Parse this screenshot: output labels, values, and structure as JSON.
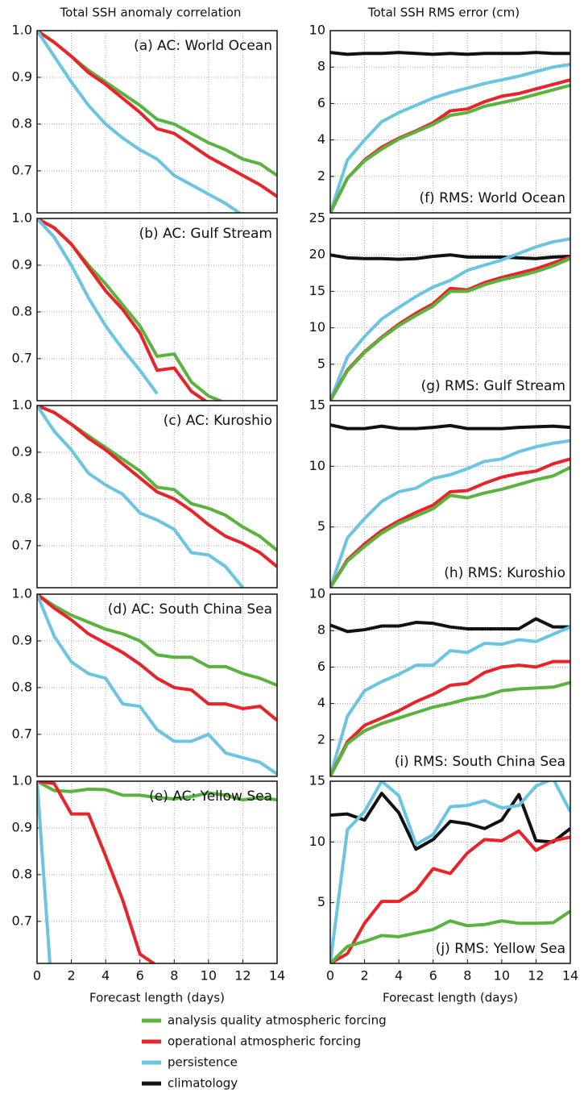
{
  "chart_data": [
    {
      "type": "line",
      "title": "Total SSH anomaly correlation",
      "annotation": "(a) AC: World Ocean",
      "xlim": [
        0,
        14
      ],
      "xticks": [
        0,
        2,
        4,
        6,
        8,
        10,
        12,
        14
      ],
      "ylim": [
        0.61,
        1.0
      ],
      "yticks": [
        {
          "value": 1.0,
          "label": "1.0"
        },
        0.9,
        0.8,
        0.7
      ],
      "grid": true,
      "x": [
        0,
        1,
        2,
        3,
        4,
        5,
        6,
        7,
        8,
        9,
        10,
        11,
        12,
        13,
        14
      ],
      "series": [
        {
          "name": "analysis quality atmospheric forcing",
          "color": "#5bb33f",
          "values": [
            1.0,
            0.975,
            0.945,
            0.915,
            0.89,
            0.865,
            0.84,
            0.81,
            0.8,
            0.78,
            0.76,
            0.745,
            0.725,
            0.715,
            0.69
          ]
        },
        {
          "name": "operational atmospheric forcing",
          "color": "#e8242a",
          "values": [
            1.0,
            0.975,
            0.945,
            0.91,
            0.885,
            0.855,
            0.825,
            0.79,
            0.78,
            0.755,
            0.73,
            0.71,
            0.69,
            0.67,
            0.645
          ]
        },
        {
          "name": "persistence",
          "color": "#6cc5e0",
          "values": [
            1.0,
            0.945,
            0.89,
            0.84,
            0.8,
            0.77,
            0.745,
            0.725,
            0.69,
            0.67,
            0.65,
            0.63,
            0.605,
            null,
            null
          ]
        },
        {
          "name": "climatology",
          "color": "#111111",
          "values": [
            null,
            null,
            null,
            null,
            null,
            null,
            null,
            null,
            null,
            null,
            null,
            null,
            null,
            null,
            null
          ]
        }
      ]
    },
    {
      "type": "line",
      "annotation": "(b) AC: Gulf Stream",
      "xlim": [
        0,
        14
      ],
      "xticks": [
        0,
        2,
        4,
        6,
        8,
        10,
        12,
        14
      ],
      "ylim": [
        0.61,
        1.0
      ],
      "yticks": [
        {
          "value": 1.0,
          "label": "1.0"
        },
        0.9,
        0.8,
        0.7
      ],
      "grid": true,
      "x": [
        0,
        1,
        2,
        3,
        4,
        5,
        6,
        7,
        8,
        9,
        10,
        11,
        12,
        13,
        14
      ],
      "series": [
        {
          "color": "#5bb33f",
          "values": [
            1.0,
            0.98,
            0.945,
            0.9,
            0.86,
            0.815,
            0.77,
            0.705,
            0.71,
            0.65,
            0.62,
            0.605,
            null,
            null,
            null
          ]
        },
        {
          "color": "#e8242a",
          "values": [
            1.0,
            0.98,
            0.945,
            0.895,
            0.845,
            0.805,
            0.755,
            0.675,
            0.68,
            0.63,
            0.605,
            null,
            null,
            null,
            null
          ]
        },
        {
          "color": "#6cc5e0",
          "values": [
            1.0,
            0.96,
            0.9,
            0.83,
            0.77,
            0.72,
            0.675,
            0.625,
            null,
            null,
            null,
            null,
            null,
            null,
            null
          ]
        }
      ]
    },
    {
      "type": "line",
      "annotation": "(c) AC: Kuroshio",
      "xlim": [
        0,
        14
      ],
      "xticks": [
        0,
        2,
        4,
        6,
        8,
        10,
        12,
        14
      ],
      "ylim": [
        0.61,
        1.0
      ],
      "yticks": [
        {
          "value": 1.0,
          "label": "1.0"
        },
        0.9,
        0.8,
        0.7
      ],
      "grid": true,
      "x": [
        0,
        1,
        2,
        3,
        4,
        5,
        6,
        7,
        8,
        9,
        10,
        11,
        12,
        13,
        14
      ],
      "series": [
        {
          "color": "#5bb33f",
          "values": [
            1.0,
            0.985,
            0.96,
            0.935,
            0.91,
            0.885,
            0.86,
            0.825,
            0.82,
            0.79,
            0.78,
            0.765,
            0.74,
            0.72,
            0.69
          ]
        },
        {
          "color": "#e8242a",
          "values": [
            1.0,
            0.985,
            0.96,
            0.93,
            0.905,
            0.875,
            0.845,
            0.815,
            0.8,
            0.775,
            0.745,
            0.72,
            0.705,
            0.685,
            0.655
          ]
        },
        {
          "color": "#6cc5e0",
          "values": [
            1.0,
            0.945,
            0.905,
            0.855,
            0.83,
            0.81,
            0.77,
            0.755,
            0.735,
            0.685,
            0.68,
            0.655,
            0.61,
            null,
            null
          ]
        }
      ]
    },
    {
      "type": "line",
      "annotation": "(d) AC: South China Sea",
      "xlim": [
        0,
        14
      ],
      "xticks": [
        0,
        2,
        4,
        6,
        8,
        10,
        12,
        14
      ],
      "ylim": [
        0.61,
        1.0
      ],
      "yticks": [
        {
          "value": 1.0,
          "label": "1.0"
        },
        0.9,
        0.8,
        0.7
      ],
      "grid": true,
      "x": [
        0,
        1,
        2,
        3,
        4,
        5,
        6,
        7,
        8,
        9,
        10,
        11,
        12,
        13,
        14
      ],
      "series": [
        {
          "color": "#5bb33f",
          "values": [
            1.0,
            0.975,
            0.955,
            0.94,
            0.925,
            0.915,
            0.9,
            0.87,
            0.865,
            0.865,
            0.845,
            0.845,
            0.83,
            0.82,
            0.805
          ]
        },
        {
          "color": "#e8242a",
          "values": [
            1.0,
            0.97,
            0.945,
            0.915,
            0.895,
            0.875,
            0.85,
            0.82,
            0.8,
            0.795,
            0.765,
            0.765,
            0.755,
            0.76,
            0.73
          ]
        },
        {
          "color": "#6cc5e0",
          "values": [
            1.0,
            0.91,
            0.855,
            0.83,
            0.82,
            0.765,
            0.76,
            0.71,
            0.685,
            0.685,
            0.7,
            0.66,
            0.65,
            0.64,
            0.615
          ]
        }
      ]
    },
    {
      "type": "line",
      "annotation": "(e) AC: Yellow Sea",
      "xlabel": "Forecast length (days)",
      "xlim": [
        0,
        14
      ],
      "xticks": [
        0,
        2,
        4,
        6,
        8,
        10,
        12,
        14
      ],
      "ylim": [
        0.61,
        1.0
      ],
      "yticks": [
        {
          "value": 1.0,
          "label": "1.0"
        },
        0.9,
        0.8,
        0.7
      ],
      "grid": true,
      "x": [
        0,
        1,
        2,
        3,
        4,
        5,
        6,
        7,
        8,
        9,
        10,
        11,
        12,
        13,
        14
      ],
      "series": [
        {
          "color": "#5bb33f",
          "values": [
            1.0,
            0.98,
            0.978,
            0.983,
            0.982,
            0.97,
            0.97,
            0.965,
            0.962,
            0.967,
            0.975,
            0.97,
            0.96,
            0.965,
            0.96
          ]
        },
        {
          "color": "#e8242a",
          "values": [
            1.0,
            0.995,
            0.93,
            0.93,
            0.84,
            0.745,
            0.63,
            0.605,
            null,
            null,
            null,
            null,
            null,
            null,
            null
          ]
        },
        {
          "color": "#6cc5e0",
          "values": [
            1.0,
            0.48,
            null,
            null,
            null,
            null,
            null,
            null,
            null,
            null,
            null,
            null,
            null,
            null,
            null
          ]
        }
      ]
    },
    {
      "type": "line",
      "title": "Total SSH RMS error (cm)",
      "annotation": "(f) RMS: World Ocean",
      "xlim": [
        0,
        14
      ],
      "xticks": [
        0,
        2,
        4,
        6,
        8,
        10,
        12,
        14
      ],
      "ylim": [
        0,
        10
      ],
      "yticks": [
        2,
        4,
        6,
        8,
        10
      ],
      "grid": true,
      "x": [
        0,
        1,
        2,
        3,
        4,
        5,
        6,
        7,
        8,
        9,
        10,
        11,
        12,
        13,
        14
      ],
      "series": [
        {
          "color": "#111111",
          "values": [
            8.8,
            8.7,
            8.75,
            8.75,
            8.8,
            8.75,
            8.7,
            8.75,
            8.7,
            8.75,
            8.75,
            8.75,
            8.8,
            8.75,
            8.75
          ]
        },
        {
          "color": "#6cc5e0",
          "values": [
            0,
            2.9,
            4.0,
            5.0,
            5.5,
            5.9,
            6.3,
            6.6,
            6.85,
            7.1,
            7.3,
            7.5,
            7.75,
            8.0,
            8.15
          ]
        },
        {
          "color": "#e8242a",
          "values": [
            0,
            1.9,
            2.9,
            3.6,
            4.1,
            4.5,
            4.95,
            5.6,
            5.7,
            6.1,
            6.4,
            6.55,
            6.8,
            7.05,
            7.3
          ]
        },
        {
          "color": "#5bb33f",
          "values": [
            0,
            1.9,
            2.85,
            3.5,
            4.05,
            4.45,
            4.85,
            5.35,
            5.5,
            5.85,
            6.05,
            6.25,
            6.5,
            6.75,
            7.0
          ]
        }
      ]
    },
    {
      "type": "line",
      "annotation": "(g) RMS: Gulf Stream",
      "xlim": [
        0,
        14
      ],
      "xticks": [
        0,
        2,
        4,
        6,
        8,
        10,
        12,
        14
      ],
      "ylim": [
        0,
        25
      ],
      "yticks": [
        5,
        10,
        15,
        20,
        25
      ],
      "grid": true,
      "x": [
        0,
        1,
        2,
        3,
        4,
        5,
        6,
        7,
        8,
        9,
        10,
        11,
        12,
        13,
        14
      ],
      "series": [
        {
          "color": "#111111",
          "values": [
            20,
            19.6,
            19.5,
            19.5,
            19.4,
            19.5,
            19.8,
            20,
            19.7,
            19.7,
            19.7,
            19.6,
            19.5,
            19.7,
            19.8
          ]
        },
        {
          "color": "#6cc5e0",
          "values": [
            0,
            6,
            8.8,
            11.2,
            12.8,
            14.3,
            15.6,
            16.5,
            17.9,
            18.6,
            19.3,
            20.2,
            21.1,
            21.8,
            22.2
          ]
        },
        {
          "color": "#e8242a",
          "values": [
            0,
            4.2,
            6.7,
            8.7,
            10.5,
            12,
            13.3,
            15.4,
            15.2,
            16.2,
            16.9,
            17.5,
            18.1,
            18.9,
            19.7
          ]
        },
        {
          "color": "#5bb33f",
          "values": [
            0,
            4.1,
            6.6,
            8.6,
            10.3,
            11.7,
            13,
            15,
            15,
            15.9,
            16.6,
            17.1,
            17.7,
            18.5,
            19.5
          ]
        }
      ]
    },
    {
      "type": "line",
      "annotation": "(h) RMS: Kuroshio",
      "xlim": [
        0,
        14
      ],
      "xticks": [
        0,
        2,
        4,
        6,
        8,
        10,
        12,
        14
      ],
      "ylim": [
        0,
        15
      ],
      "yticks": [
        5,
        10,
        15
      ],
      "grid": true,
      "x": [
        0,
        1,
        2,
        3,
        4,
        5,
        6,
        7,
        8,
        9,
        10,
        11,
        12,
        13,
        14
      ],
      "series": [
        {
          "color": "#111111",
          "values": [
            13.4,
            13.1,
            13.1,
            13.3,
            13.1,
            13.1,
            13.2,
            13.35,
            13.1,
            13.1,
            13.1,
            13.2,
            13.25,
            13.3,
            13.2
          ]
        },
        {
          "color": "#6cc5e0",
          "values": [
            0,
            4.1,
            5.7,
            7.1,
            7.9,
            8.2,
            9,
            9.3,
            9.8,
            10.4,
            10.6,
            11.2,
            11.6,
            11.9,
            12.1
          ]
        },
        {
          "color": "#e8242a",
          "values": [
            0,
            2.3,
            3.6,
            4.7,
            5.5,
            6.2,
            6.8,
            7.9,
            8,
            8.6,
            9.1,
            9.4,
            9.6,
            10.2,
            10.6
          ]
        },
        {
          "color": "#5bb33f",
          "values": [
            0,
            2.2,
            3.4,
            4.5,
            5.3,
            5.9,
            6.5,
            7.6,
            7.4,
            7.8,
            8.1,
            8.5,
            8.9,
            9.2,
            9.9
          ]
        }
      ]
    },
    {
      "type": "line",
      "annotation": "(i) RMS: South China Sea",
      "xlim": [
        0,
        14
      ],
      "xticks": [
        0,
        2,
        4,
        6,
        8,
        10,
        12,
        14
      ],
      "ylim": [
        0,
        10
      ],
      "yticks": [
        2,
        4,
        6,
        8,
        10
      ],
      "grid": true,
      "x": [
        0,
        1,
        2,
        3,
        4,
        5,
        6,
        7,
        8,
        9,
        10,
        11,
        12,
        13,
        14
      ],
      "series": [
        {
          "color": "#111111",
          "values": [
            8.3,
            7.95,
            8.05,
            8.25,
            8.25,
            8.45,
            8.4,
            8.2,
            8.1,
            8.1,
            8.1,
            8.1,
            8.65,
            8.2,
            8.2
          ]
        },
        {
          "color": "#6cc5e0",
          "values": [
            0,
            3.3,
            4.7,
            5.2,
            5.6,
            6.1,
            6.1,
            6.9,
            6.8,
            7.3,
            7.25,
            7.5,
            7.4,
            7.8,
            8.2
          ]
        },
        {
          "color": "#e8242a",
          "values": [
            0,
            1.9,
            2.8,
            3.2,
            3.6,
            4.1,
            4.5,
            5.0,
            5.1,
            5.7,
            6.0,
            6.1,
            6.0,
            6.3,
            6.3
          ]
        },
        {
          "color": "#5bb33f",
          "values": [
            0,
            1.8,
            2.5,
            2.9,
            3.2,
            3.5,
            3.8,
            4.0,
            4.25,
            4.4,
            4.7,
            4.8,
            4.85,
            4.9,
            5.15
          ]
        }
      ]
    },
    {
      "type": "line",
      "annotation": "(j) RMS: Yellow Sea",
      "xlabel": "Forecast length (days)",
      "xlim": [
        0,
        14
      ],
      "xticks": [
        0,
        2,
        4,
        6,
        8,
        10,
        12,
        14
      ],
      "ylim": [
        0,
        15
      ],
      "yticks": [
        5,
        10,
        15
      ],
      "grid": true,
      "x": [
        0,
        1,
        2,
        3,
        4,
        5,
        6,
        7,
        8,
        9,
        10,
        11,
        12,
        13,
        14
      ],
      "series": [
        {
          "color": "#111111",
          "values": [
            12.2,
            12.3,
            11.8,
            14,
            12.4,
            9.4,
            10.2,
            11.7,
            11.5,
            11.1,
            11.8,
            13.9,
            10.1,
            10,
            11.1
          ]
        },
        {
          "color": "#6cc5e0",
          "values": [
            0,
            11,
            12.5,
            15,
            13.8,
            9.8,
            10.6,
            12.9,
            13,
            13.4,
            12.8,
            13,
            14.6,
            15.2,
            12.5
          ]
        },
        {
          "color": "#e8242a",
          "values": [
            0,
            0.8,
            3.3,
            5.1,
            5.1,
            6,
            7.8,
            7.4,
            9.1,
            10.2,
            10.1,
            10.9,
            9.3,
            10.1,
            10.4
          ]
        },
        {
          "color": "#5bb33f",
          "values": [
            0,
            1.4,
            1.8,
            2.3,
            2.2,
            2.5,
            2.8,
            3.5,
            3.1,
            3.2,
            3.5,
            3.3,
            3.3,
            3.35,
            4.3
          ]
        }
      ]
    }
  ]
}
